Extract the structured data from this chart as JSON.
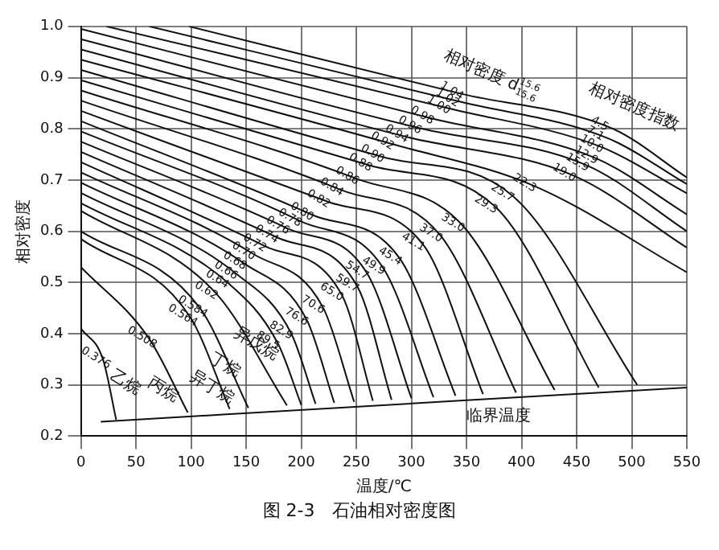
{
  "chart_data": {
    "type": "line",
    "xlabel": "温度/℃",
    "ylabel": "相对密度",
    "xlim": [
      0,
      550
    ],
    "ylim": [
      0.2,
      1.0
    ],
    "xticks": [
      0,
      50,
      100,
      150,
      200,
      250,
      300,
      350,
      400,
      450,
      500,
      550
    ],
    "yticks": [
      0.2,
      0.3,
      0.4,
      0.5,
      0.6,
      0.7,
      0.8,
      0.9,
      {
        "value": 1,
        "label": "1.0"
      }
    ],
    "grid": true,
    "legend": false,
    "marker": "none",
    "line_style": "solid",
    "series": [
      {
        "name": "0.376",
        "color": "#111111",
        "x": [
          0,
          20,
          32
        ],
        "values": [
          0.41,
          0.35,
          0.232
        ]
      },
      {
        "name": "0.508",
        "color": "#111111",
        "x": [
          0,
          62,
          97
        ],
        "values": [
          0.53,
          0.39,
          0.246
        ]
      },
      {
        "name": "0.564",
        "color": "#111111",
        "x": [
          0,
          99,
          135
        ],
        "values": [
          0.585,
          0.433,
          0.253
        ]
      },
      {
        "name": "0.584",
        "color": "#111111",
        "x": [
          0,
          108,
          152
        ],
        "values": [
          0.6,
          0.45,
          0.255
        ]
      },
      {
        "name": "0.62",
        "color": "#111111",
        "x": [
          0,
          123,
          187
        ],
        "values": [
          0.64,
          0.478,
          0.26
        ]
      },
      {
        "name": "0.64",
        "color": "#111111",
        "x": [
          0,
          133,
          179,
          200
        ],
        "values": [
          0.655,
          0.5,
          0.38,
          0.261
        ]
      },
      {
        "name": "0.66",
        "color": "#111111",
        "x": [
          0,
          141,
          191,
          213
        ],
        "values": [
          0.675,
          0.517,
          0.4,
          0.263
        ]
      },
      {
        "name": "0.68",
        "color": "#111111",
        "x": [
          0,
          149,
          205,
          230
        ],
        "values": [
          0.695,
          0.536,
          0.427,
          0.265
        ]
      },
      {
        "name": "0.70",
        "color": "#111111",
        "x": [
          0,
          157,
          220,
          248
        ],
        "values": [
          0.715,
          0.555,
          0.45,
          0.267
        ]
      },
      {
        "name": "0.72",
        "color": "#111111",
        "x": [
          0,
          167,
          237,
          265
        ],
        "values": [
          0.735,
          0.571,
          0.475,
          0.269
        ]
      },
      {
        "name": "0.74",
        "color": "#111111",
        "x": [
          0,
          178,
          251,
          282
        ],
        "values": [
          0.755,
          0.588,
          0.492,
          0.271
        ]
      },
      {
        "name": "0.76",
        "color": "#111111",
        "x": [
          0,
          188,
          260,
          300
        ],
        "values": [
          0.775,
          0.605,
          0.517,
          0.274
        ]
      },
      {
        "name": "0.78",
        "color": "#111111",
        "x": [
          0,
          199,
          275,
          320
        ],
        "values": [
          0.795,
          0.62,
          0.526,
          0.276
        ]
      },
      {
        "name": "0.80",
        "color": "#111111",
        "x": [
          0,
          210,
          290,
          340
        ],
        "values": [
          0.815,
          0.632,
          0.545,
          0.279
        ]
      },
      {
        "name": "0.82",
        "color": "#111111",
        "x": [
          0,
          225,
          311,
          365
        ],
        "values": [
          0.835,
          0.657,
          0.573,
          0.282
        ]
      },
      {
        "name": "0.84",
        "color": "#111111",
        "x": [
          0,
          237,
          327,
          395
        ],
        "values": [
          0.855,
          0.68,
          0.59,
          0.285
        ]
      },
      {
        "name": "0.86",
        "color": "#111111",
        "x": [
          0,
          251,
          347,
          430
        ],
        "values": [
          0.875,
          0.702,
          0.61,
          0.29
        ]
      },
      {
        "name": "0.88",
        "color": "#111111",
        "x": [
          0,
          263,
          377,
          470
        ],
        "values": [
          0.895,
          0.728,
          0.646,
          0.295
        ]
      },
      {
        "name": "0.90",
        "color": "#111111",
        "x": [
          0,
          274,
          392,
          505
        ],
        "values": [
          0.915,
          0.745,
          0.669,
          0.3
        ]
      },
      {
        "name": "0.92",
        "color": "#111111",
        "x": [
          0,
          283,
          412,
          550
        ],
        "values": [
          0.935,
          0.77,
          0.688,
          0.52
        ]
      },
      {
        "name": "0.94",
        "color": "#111111",
        "x": [
          0,
          296,
          448,
          550
        ],
        "values": [
          0.955,
          0.784,
          0.708,
          0.568
        ]
      },
      {
        "name": "0.96",
        "color": "#111111",
        "x": [
          0,
          308,
          460,
          550
        ],
        "values": [
          0.975,
          0.801,
          0.728,
          0.6
        ]
      },
      {
        "name": "0.98",
        "color": "#111111",
        "x": [
          0,
          319,
          468,
          550
        ],
        "values": [
          0.995,
          0.82,
          0.742,
          0.633
        ]
      },
      {
        "name": "1.00",
        "color": "#111111",
        "x": [
          23,
          334,
          473,
          550
        ],
        "values": [
          1.0,
          0.84,
          0.764,
          0.674
        ]
      },
      {
        "name": "1.02",
        "color": "#111111",
        "x": [
          62,
          342,
          479,
          550
        ],
        "values": [
          1.0,
          0.854,
          0.781,
          0.692
        ]
      },
      {
        "name": "1.04",
        "color": "#111111",
        "x": [
          98,
          346,
          483,
          550
        ],
        "values": [
          1.0,
          0.868,
          0.8,
          0.705
        ]
      },
      {
        "color": "#111111",
        "x": [
          18,
          350,
          550
        ],
        "values": [
          0.228,
          0.27,
          0.295
        ]
      }
    ],
    "annotations": [
      "相对密度 d$^{15.6}$$_{15.6}$",
      "相对密度指数",
      "乙烷",
      {
        "text": "4.5",
        "x": 483,
        "y": 0.8
      },
      {
        "text": "7.1",
        "x": 479,
        "y": 0.781
      },
      {
        "text": "10.0",
        "x": 473,
        "y": 0.764
      },
      {
        "text": "12.9",
        "x": 468,
        "y": 0.742
      },
      {
        "text": "15.9",
        "x": 460,
        "y": 0.728
      },
      {
        "text": "19.0",
        "x": 448,
        "y": 0.708
      },
      {
        "text": "22.3",
        "x": 412,
        "y": 0.688
      },
      {
        "text": "25.7",
        "x": 392,
        "y": 0.669
      },
      {
        "text": "29.3",
        "x": 377,
        "y": 0.646
      },
      {
        "text": "33.0",
        "x": 347,
        "y": 0.61
      },
      {
        "text": "37.0",
        "x": 327,
        "y": 0.59
      },
      {
        "text": "41.1",
        "x": 311,
        "y": 0.573
      },
      {
        "text": "45.4",
        "x": 290,
        "y": 0.545
      },
      {
        "text": "49.9",
        "x": 275,
        "y": 0.526
      },
      {
        "text": "54.7",
        "x": 260,
        "y": 0.517
      },
      {
        "text": "59.7",
        "x": 251,
        "y": 0.492
      },
      {
        "text": "65.0",
        "x": 237,
        "y": 0.475
      },
      {
        "text": "70.6",
        "x": 220,
        "y": 0.45
      },
      {
        "text": "76.6",
        "x": 205,
        "y": 0.427
      },
      {
        "text": "82.9",
        "x": 191,
        "y": 0.4
      },
      {
        "text": "89.5",
        "x": 179,
        "y": 0.38
      },
      {
        "text": "丙烷",
        "x": 81,
        "y": 0.287
      },
      {
        "text": "异丁烷",
        "x": 119,
        "y": 0.3
      },
      {
        "text": "丁烷",
        "x": 137,
        "y": 0.335
      },
      {
        "text": "异戊烷",
        "x": 159,
        "y": 0.385
      },
      {
        "text": "临界温度",
        "x": 350,
        "y": 0.27
      },
      "图 2-3　石油相对密度图"
    ]
  }
}
